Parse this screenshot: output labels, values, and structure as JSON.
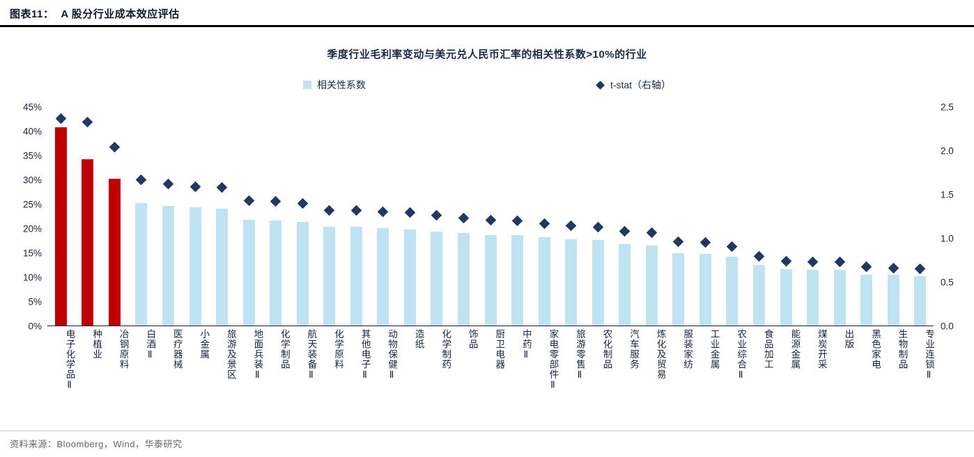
{
  "header": {
    "figure_label": "图表11：",
    "title": "A 股分行业成本效应评估"
  },
  "footer": {
    "source": "资料来源：Bloomberg，Wind，华泰研究"
  },
  "chart_data": {
    "type": "bar",
    "title": "季度行业毛利率变动与美元兑人民币汇率的相关性系数>10%的行业",
    "legend": [
      {
        "label": "相关性系数",
        "marker": "bar-swatch-icon",
        "color": "#bfe3f2"
      },
      {
        "label": "t-stat（右轴）",
        "marker": "diamond-swatch-icon",
        "color": "#1f3864"
      }
    ],
    "bar_color": "#bfe3f2",
    "highlight_color": "#c00000",
    "highlight_count": 3,
    "diamond_color": "#1f3864",
    "grid": "off",
    "left_axis": {
      "min": 0,
      "max": 45,
      "unit": "%",
      "ticks": [
        "45%",
        "40%",
        "35%",
        "30%",
        "25%",
        "20%",
        "15%",
        "10%",
        "5%",
        "0%"
      ]
    },
    "right_axis": {
      "min": 0,
      "max": 2.5,
      "ticks": [
        "2.5",
        "2.0",
        "1.5",
        "1.0",
        "0.5",
        "0.0"
      ]
    },
    "categories": [
      "电子化学品Ⅱ",
      "种植业",
      "冶钢原料",
      "白酒Ⅱ",
      "医疗器械",
      "小金属",
      "旅游及景区",
      "地面兵装Ⅱ",
      "化学制品",
      "航天装备Ⅱ",
      "化学原料",
      "其他电子Ⅱ",
      "动物保健Ⅱ",
      "造纸",
      "化学制药",
      "饰品",
      "厨卫电器",
      "中药Ⅱ",
      "家电零部件Ⅱ",
      "旅游零售Ⅱ",
      "农化制品",
      "汽车服务",
      "炼化及贸易",
      "服装家纺",
      "工业金属",
      "农业综合Ⅱ",
      "食品加工",
      "能源金属",
      "煤炭开采",
      "出版",
      "黑色家电",
      "生物制品",
      "专业连锁Ⅱ"
    ],
    "series": [
      {
        "name": "相关性系数",
        "axis": "left",
        "values": [
          40.8,
          34.3,
          30.2,
          25.2,
          24.7,
          24.3,
          24.1,
          21.8,
          21.7,
          21.4,
          20.4,
          20.3,
          20.1,
          19.8,
          19.4,
          19.0,
          18.7,
          18.6,
          18.2,
          17.8,
          17.6,
          16.8,
          16.5,
          14.9,
          14.8,
          14.2,
          12.5,
          11.6,
          11.4,
          11.4,
          10.4,
          10.5,
          10.2
        ]
      },
      {
        "name": "t-stat（右轴）",
        "axis": "right",
        "values": [
          2.37,
          2.33,
          2.04,
          1.67,
          1.62,
          1.59,
          1.58,
          1.43,
          1.42,
          1.4,
          1.32,
          1.32,
          1.3,
          1.29,
          1.26,
          1.23,
          1.21,
          1.2,
          1.17,
          1.14,
          1.13,
          1.08,
          1.06,
          0.96,
          0.95,
          0.9,
          0.79,
          0.74,
          0.73,
          0.73,
          0.67,
          0.66,
          0.65
        ]
      }
    ]
  }
}
